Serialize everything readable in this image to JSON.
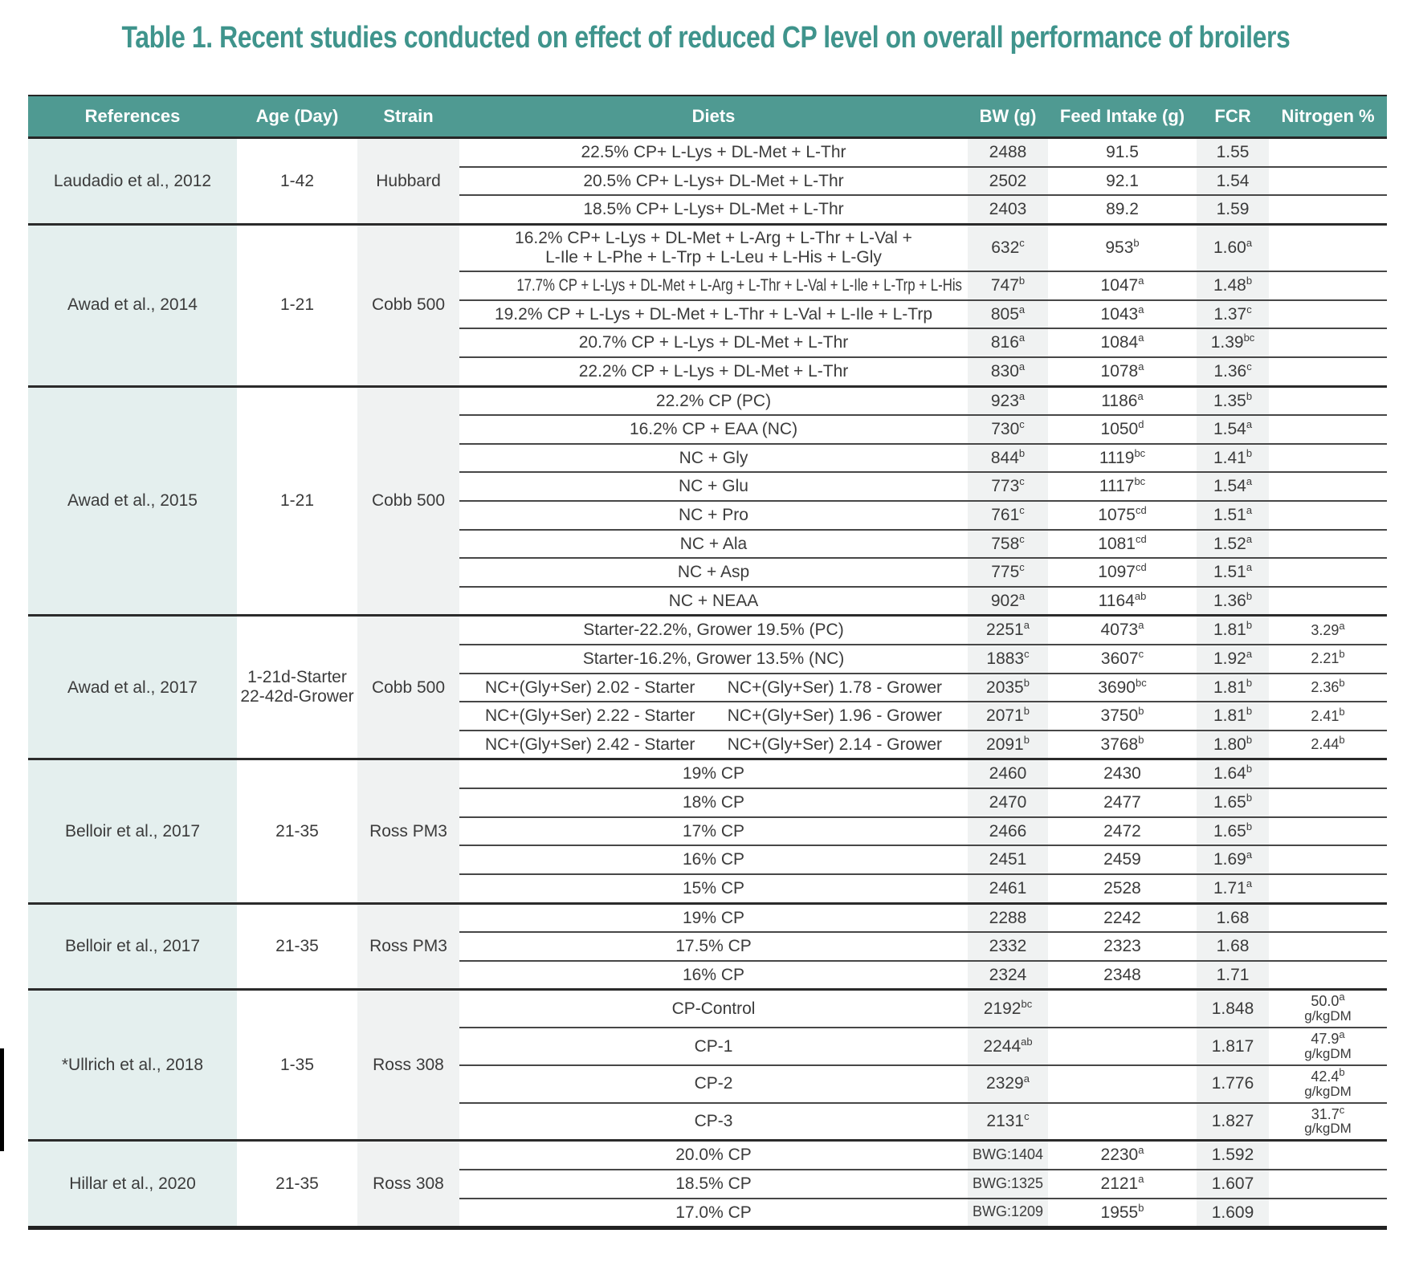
{
  "title": "Table 1. Recent studies conducted on effect of reduced CP level on overall performance of broilers",
  "columns": [
    "References",
    "Age (Day)",
    "Strain",
    "Diets",
    "BW (g)",
    "Feed Intake (g)",
    "FCR",
    "Nitrogen %"
  ],
  "groups": [
    {
      "reference": "Laudadio et al., 2012",
      "age": "1-42",
      "strain": "Hubbard",
      "rows": [
        {
          "diet": "22.5% CP+ L-Lys + DL-Met + L-Thr",
          "bw": "2488",
          "fi": "91.5",
          "fcr": "1.55",
          "n": ""
        },
        {
          "diet": "20.5% CP+ L-Lys+ DL-Met + L-Thr",
          "bw": "2502",
          "fi": "92.1",
          "fcr": "1.54",
          "n": ""
        },
        {
          "diet": "18.5% CP+ L-Lys+ DL-Met + L-Thr",
          "bw": "2403",
          "fi": "89.2",
          "fcr": "1.59",
          "n": ""
        }
      ]
    },
    {
      "reference": "Awad et al., 2014",
      "age": "1-21",
      "strain": "Cobb 500",
      "rows": [
        {
          "diet": "16.2% CP+ L-Lys + DL-Met + L-Arg + L-Thr + L-Val +\nL-Ile + L-Phe + L-Trp + L-Leu + L-His + L-Gly",
          "bw": "632^c",
          "fi": "953^b",
          "fcr": "1.60^a",
          "n": ""
        },
        {
          "diet": "17.7% CP + L-Lys + DL-Met + L-Arg + L-Thr + L-Val + L-Ile + L-Trp + L-His",
          "bw": "747^b",
          "fi": "1047^a",
          "fcr": "1.48^b",
          "n": ""
        },
        {
          "diet": "19.2% CP + L-Lys + DL-Met + L-Thr + L-Val + L-Ile + L-Trp",
          "bw": "805^a",
          "fi": "1043^a",
          "fcr": "1.37^c",
          "n": ""
        },
        {
          "diet": "20.7% CP + L-Lys + DL-Met + L-Thr",
          "bw": "816^a",
          "fi": "1084^a",
          "fcr": "1.39^bc",
          "n": ""
        },
        {
          "diet": "22.2% CP + L-Lys + DL-Met + L-Thr",
          "bw": "830^a",
          "fi": "1078^a",
          "fcr": "1.36^c",
          "n": ""
        }
      ]
    },
    {
      "reference": "Awad et al., 2015",
      "age": "1-21",
      "strain": "Cobb 500",
      "rows": [
        {
          "diet": "22.2% CP (PC)",
          "bw": "923^a",
          "fi": "1186^a",
          "fcr": "1.35^b",
          "n": ""
        },
        {
          "diet": "16.2% CP + EAA (NC)",
          "bw": "730^c",
          "fi": "1050^d",
          "fcr": "1.54^a",
          "n": ""
        },
        {
          "diet": "NC + Gly",
          "bw": "844^b",
          "fi": "1119^bc",
          "fcr": "1.41^b",
          "n": ""
        },
        {
          "diet": "NC + Glu",
          "bw": "773^c",
          "fi": "1117^bc",
          "fcr": "1.54^a",
          "n": ""
        },
        {
          "diet": "NC + Pro",
          "bw": "761^c",
          "fi": "1075^cd",
          "fcr": "1.51^a",
          "n": ""
        },
        {
          "diet": "NC + Ala",
          "bw": "758^c",
          "fi": "1081^cd",
          "fcr": "1.52^a",
          "n": ""
        },
        {
          "diet": "NC + Asp",
          "bw": "775^c",
          "fi": "1097^cd",
          "fcr": "1.51^a",
          "n": ""
        },
        {
          "diet": "NC + NEAA",
          "bw": "902^a",
          "fi": "1164^ab",
          "fcr": "1.36^b",
          "n": ""
        }
      ]
    },
    {
      "reference": "Awad et al., 2017",
      "age": "1-21d-Starter\n22-42d-Grower",
      "strain": "Cobb 500",
      "rows": [
        {
          "diet": "Starter-22.2%, Grower 19.5% (PC)",
          "bw": "2251^a",
          "fi": "4073^a",
          "fcr": "1.81^b",
          "n": "3.29^a"
        },
        {
          "diet": "Starter-16.2%, Grower 13.5% (NC)",
          "bw": "1883^c",
          "fi": "3607^c",
          "fcr": "1.92^a",
          "n": "2.21^b"
        },
        {
          "diet": {
            "left": "NC+(Gly+Ser) 2.02 - Starter",
            "right": "NC+(Gly+Ser) 1.78 - Grower"
          },
          "bw": "2035^b",
          "fi": "3690^bc",
          "fcr": "1.81^b",
          "n": "2.36^b"
        },
        {
          "diet": {
            "left": "NC+(Gly+Ser) 2.22 - Starter",
            "right": "NC+(Gly+Ser) 1.96 - Grower"
          },
          "bw": "2071^b",
          "fi": "3750^b",
          "fcr": "1.81^b",
          "n": "2.41^b"
        },
        {
          "diet": {
            "left": "NC+(Gly+Ser) 2.42 - Starter",
            "right": "NC+(Gly+Ser) 2.14 - Grower"
          },
          "bw": "2091^b",
          "fi": "3768^b",
          "fcr": "1.80^b",
          "n": "2.44^b"
        }
      ]
    },
    {
      "reference": "Belloir et al., 2017",
      "age": "21-35",
      "strain": "Ross PM3",
      "rows": [
        {
          "diet": "19% CP",
          "bw": "2460",
          "fi": "2430",
          "fcr": "1.64^b",
          "n": ""
        },
        {
          "diet": "18% CP",
          "bw": "2470",
          "fi": "2477",
          "fcr": "1.65^b",
          "n": ""
        },
        {
          "diet": "17% CP",
          "bw": "2466",
          "fi": "2472",
          "fcr": "1.65^b",
          "n": ""
        },
        {
          "diet": "16% CP",
          "bw": "2451",
          "fi": "2459",
          "fcr": "1.69^a",
          "n": ""
        },
        {
          "diet": "15% CP",
          "bw": "2461",
          "fi": "2528",
          "fcr": "1.71^a",
          "n": ""
        }
      ]
    },
    {
      "reference": "Belloir et al., 2017",
      "age": "21-35",
      "strain": "Ross PM3",
      "rows": [
        {
          "diet": "19% CP",
          "bw": "2288",
          "fi": "2242",
          "fcr": "1.68",
          "n": ""
        },
        {
          "diet": "17.5% CP",
          "bw": "2332",
          "fi": "2323",
          "fcr": "1.68",
          "n": ""
        },
        {
          "diet": "16% CP",
          "bw": "2324",
          "fi": "2348",
          "fcr": "1.71",
          "n": ""
        }
      ]
    },
    {
      "reference": "*Ullrich  et al., 2018",
      "age": "1-35",
      "strain": "Ross 308",
      "rows": [
        {
          "diet": "CP-Control",
          "bw": "2192^bc",
          "fi": "",
          "fcr": "1.848",
          "n": "50.0^a",
          "n_unit": "g/kgDM"
        },
        {
          "diet": "CP-1",
          "bw": "2244^ab",
          "fi": "",
          "fcr": "1.817",
          "n": "47.9^a",
          "n_unit": "g/kgDM"
        },
        {
          "diet": "CP-2",
          "bw": "2329^a",
          "fi": "",
          "fcr": "1.776",
          "n": "42.4^b",
          "n_unit": "g/kgDM"
        },
        {
          "diet": "CP-3",
          "bw": "2131^c",
          "fi": "",
          "fcr": "1.827",
          "n": "31.7^c",
          "n_unit": "g/kgDM"
        }
      ]
    },
    {
      "reference": "Hillar et al., 2020",
      "age": "21-35",
      "strain": "Ross 308",
      "rows": [
        {
          "diet": "20.0% CP",
          "bw": "BWG:1404",
          "fi": "2230^a",
          "fcr": "1.592",
          "n": ""
        },
        {
          "diet": "18.5% CP",
          "bw": "BWG:1325",
          "fi": "2121^a",
          "fcr": "1.607",
          "n": ""
        },
        {
          "diet": "17.0% CP",
          "bw": "BWG:1209",
          "fi": "1955^b",
          "fcr": "1.609",
          "n": ""
        }
      ]
    }
  ]
}
